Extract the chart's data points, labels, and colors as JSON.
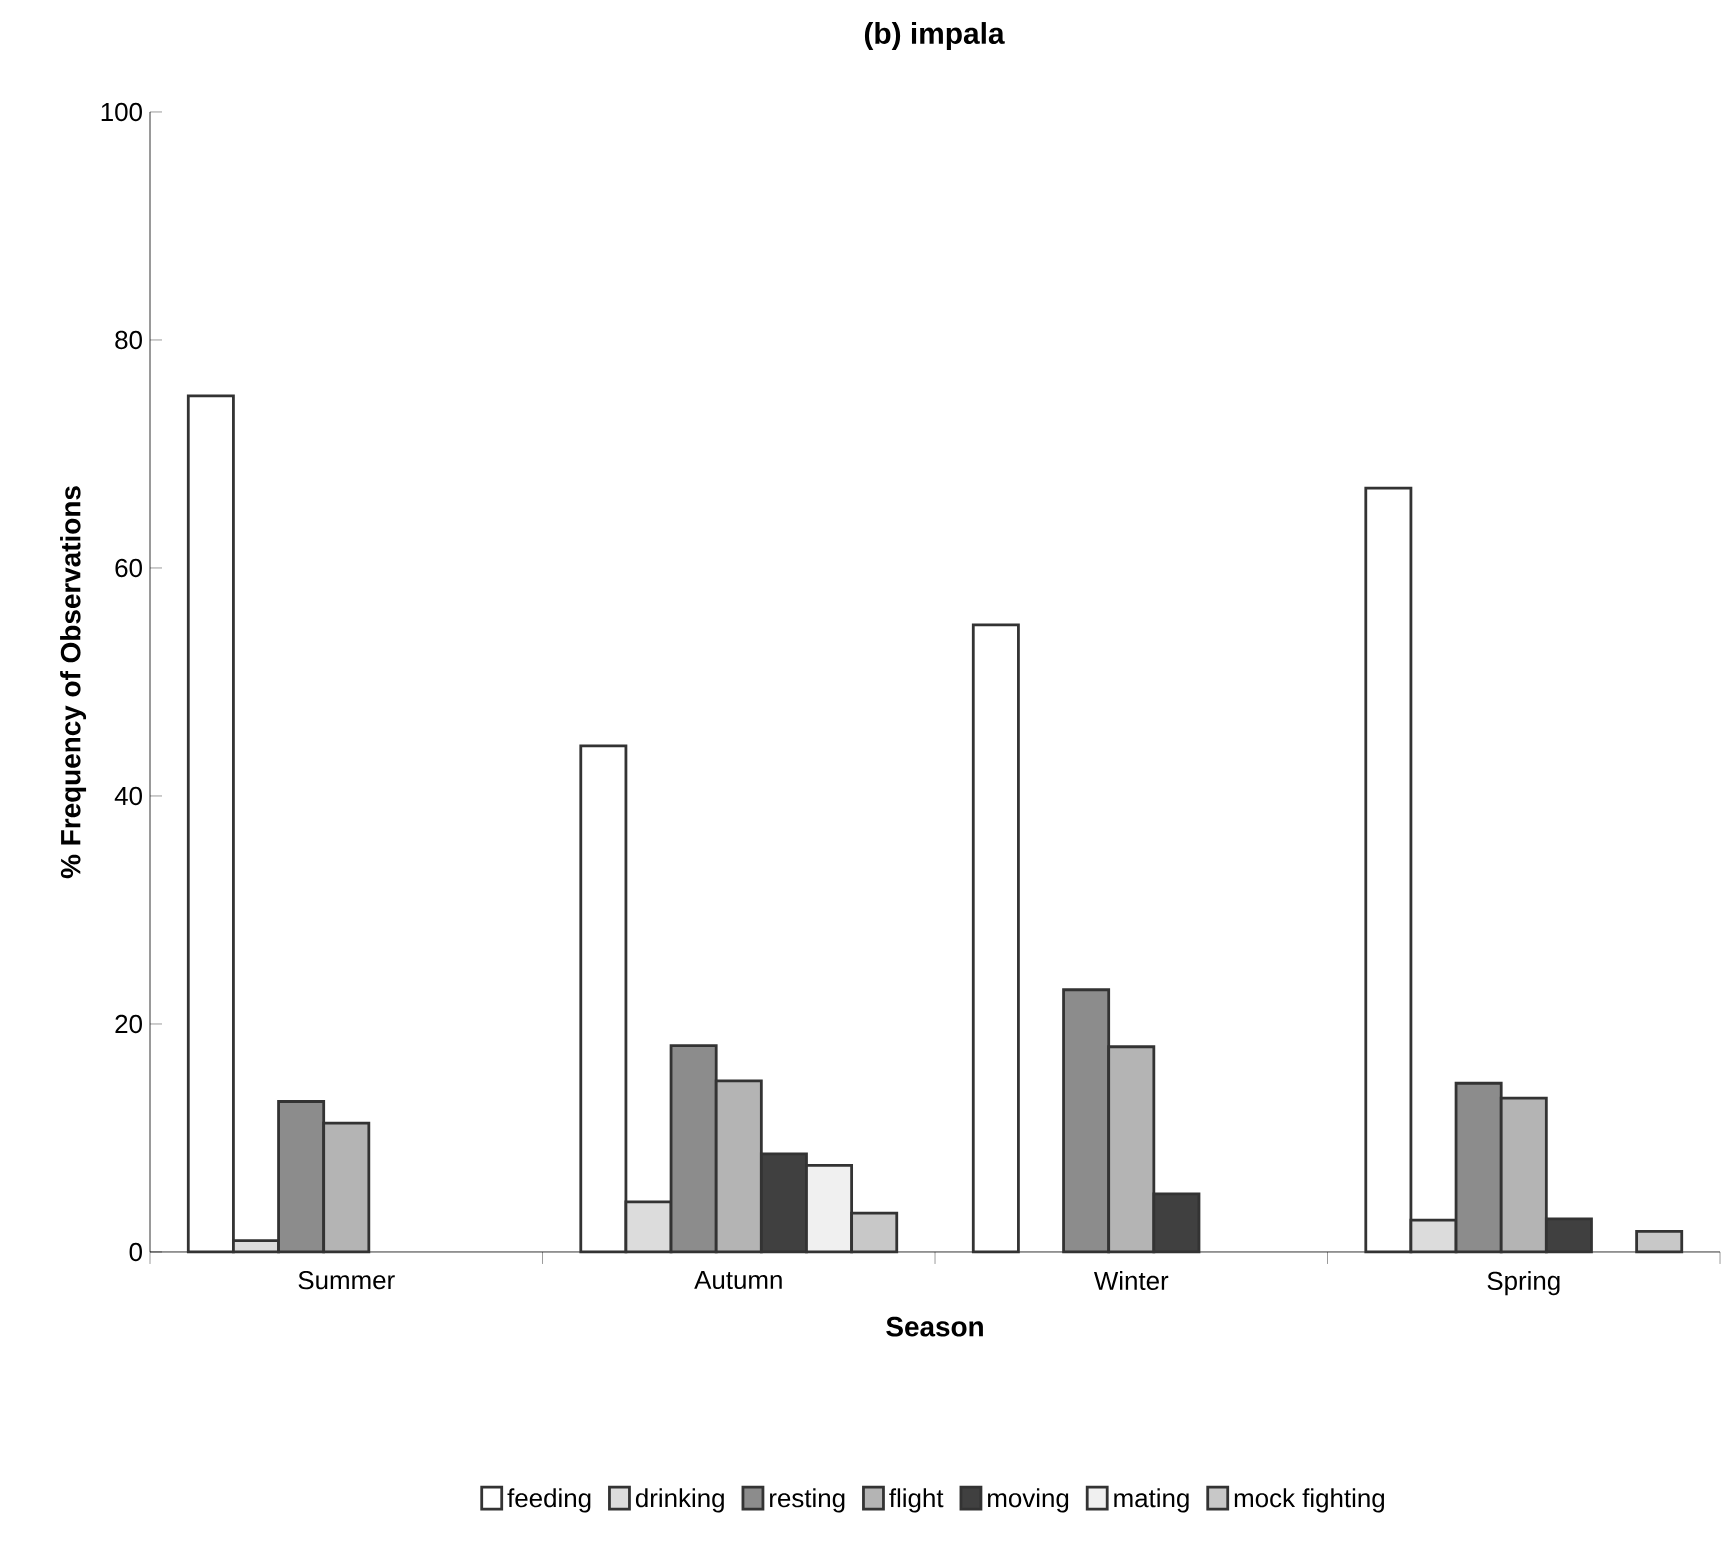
{
  "chart_data": {
    "type": "bar",
    "title": "(b) impala",
    "xlabel": "Season",
    "ylabel": "% Frequency of Observations",
    "categories": [
      "Summer",
      "Autumn",
      "Winter",
      "Spring"
    ],
    "series": [
      {
        "name": "feeding",
        "color": "#ffffff",
        "values": [
          75.1,
          44.4,
          55,
          67
        ]
      },
      {
        "name": "drinking",
        "color": "#dcdcdc",
        "values": [
          1,
          4.4,
          null,
          2.8
        ]
      },
      {
        "name": "resting",
        "color": "#8c8c8c",
        "values": [
          13.2,
          18.1,
          23,
          14.8
        ]
      },
      {
        "name": "flight",
        "color": "#b4b4b4",
        "values": [
          11.3,
          15,
          18,
          13.5
        ]
      },
      {
        "name": "moving",
        "color": "#404040",
        "values": [
          null,
          8.6,
          5.1,
          2.9
        ]
      },
      {
        "name": "mating",
        "color": "#f0f0f0",
        "values": [
          null,
          7.6,
          null,
          null
        ]
      },
      {
        "name": "mock fighting",
        "color": "#c8c8c8",
        "values": [
          null,
          3.4,
          null,
          1.8
        ]
      }
    ],
    "ylim": [
      0,
      100
    ],
    "yticks": [
      0,
      20,
      40,
      60,
      80,
      100
    ],
    "legend": "bottom"
  }
}
